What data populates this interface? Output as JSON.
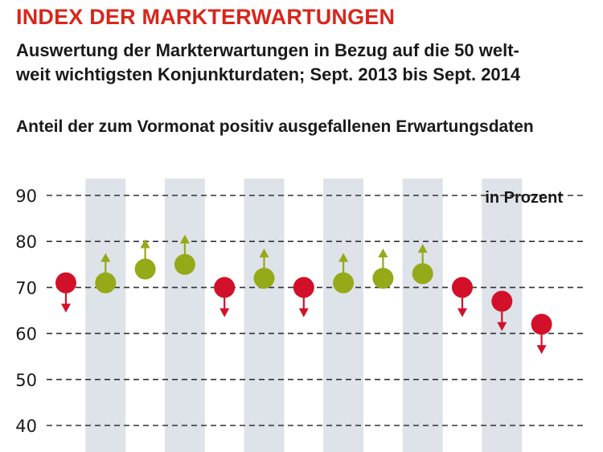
{
  "header": {
    "title": "INDEX DER MARKTERWARTUNGEN",
    "subtitle_line1": "Auswertung der Markterwartungen in Bezug auf die 50 welt-",
    "subtitle_line2": "weit wichtigsten Konjunkturdaten; Sept. 2013 bis Sept. 2014",
    "description": "Anteil der zum Vormonat positiv ausgefallenen Erwartungsdaten"
  },
  "colors": {
    "title": "#d8261c",
    "positive": "#96a918",
    "negative": "#d3102a",
    "band": "#dde3e8",
    "grid": "#333333"
  },
  "chart_data": {
    "type": "scatter",
    "unit_label": "in Prozent",
    "ylim": [
      40,
      90
    ],
    "yticks": [
      40,
      50,
      60,
      70,
      80,
      90
    ],
    "grid": true,
    "points": [
      {
        "value": 71,
        "direction": "down"
      },
      {
        "value": 71,
        "direction": "up"
      },
      {
        "value": 74,
        "direction": "up"
      },
      {
        "value": 75,
        "direction": "up"
      },
      {
        "value": 70,
        "direction": "down"
      },
      {
        "value": 72,
        "direction": "up"
      },
      {
        "value": 70,
        "direction": "down"
      },
      {
        "value": 71,
        "direction": "up"
      },
      {
        "value": 72,
        "direction": "up"
      },
      {
        "value": 73,
        "direction": "up"
      },
      {
        "value": 70,
        "direction": "down"
      },
      {
        "value": 67,
        "direction": "down"
      },
      {
        "value": 62,
        "direction": "down"
      }
    ],
    "shaded_columns": [
      1,
      3,
      5,
      7,
      9,
      11
    ]
  }
}
